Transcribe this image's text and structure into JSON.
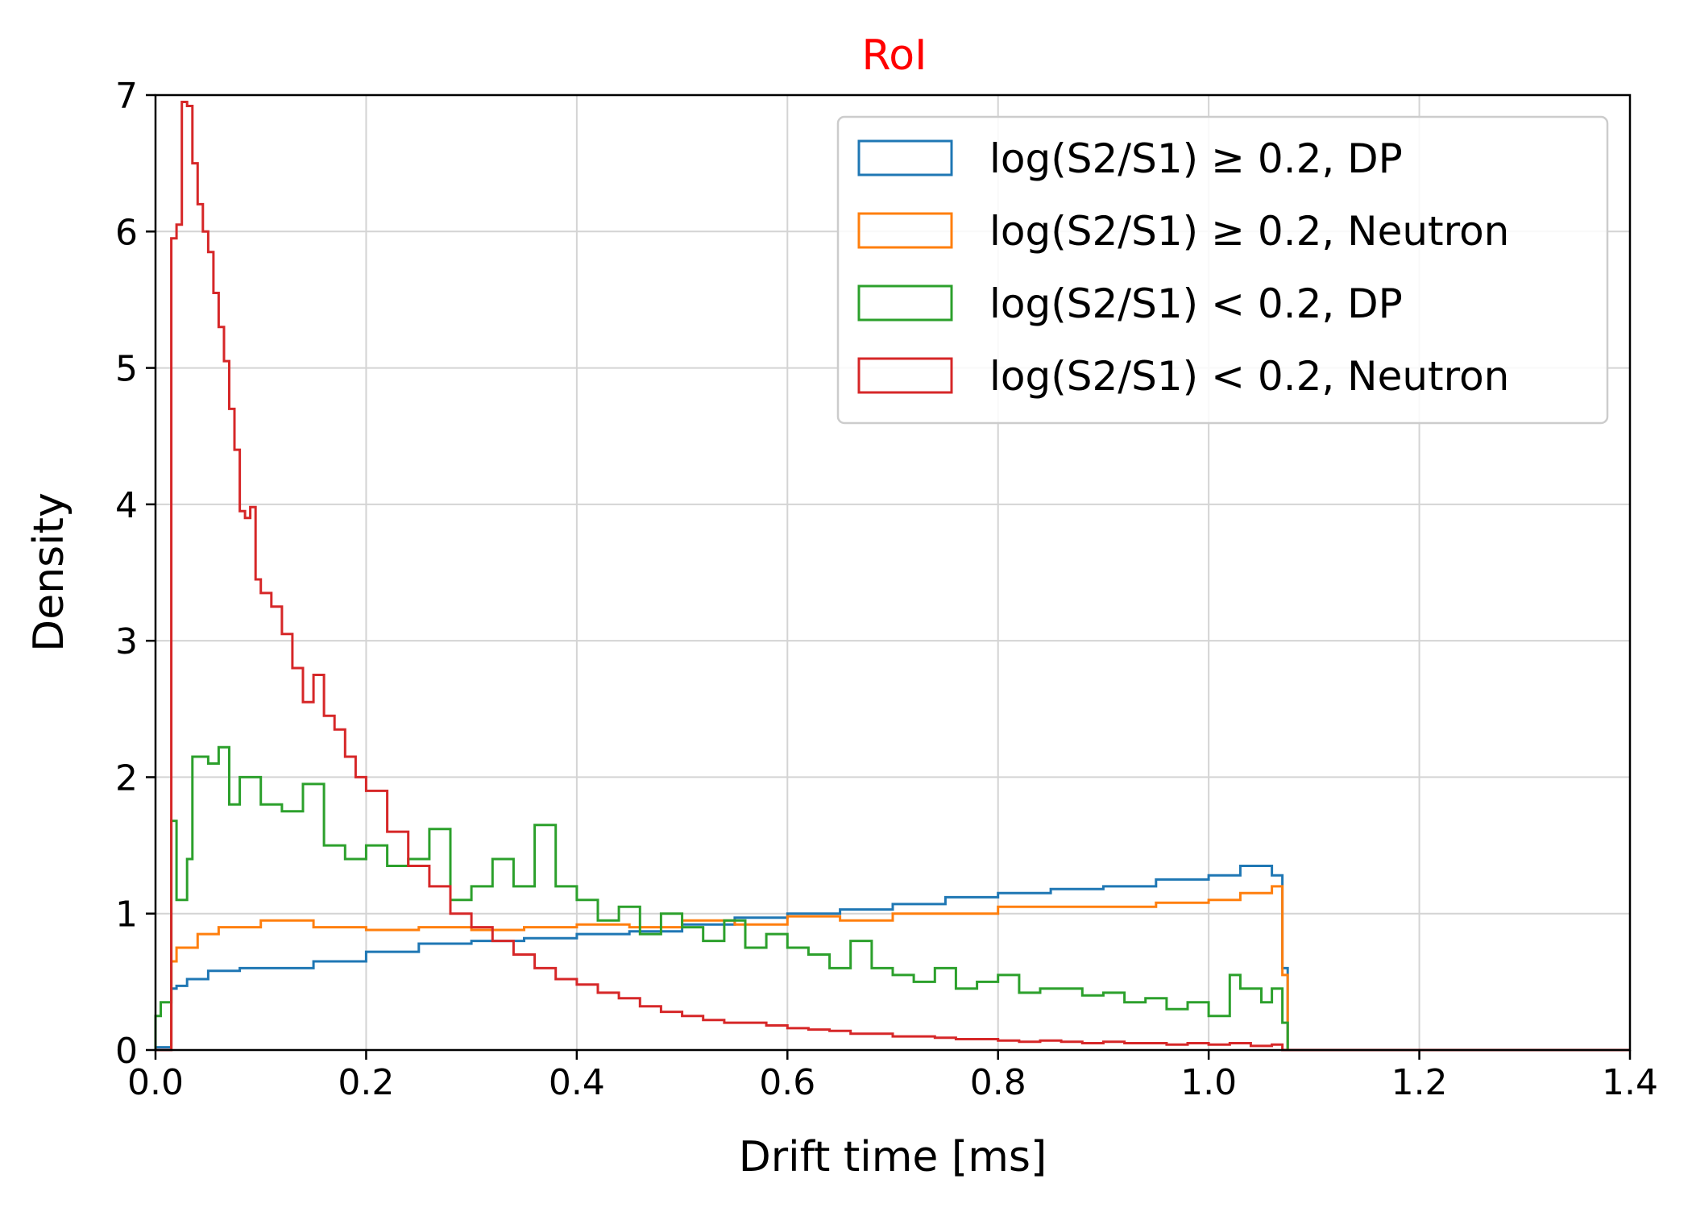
{
  "chart_data": {
    "type": "histogram-step",
    "title": "RoI",
    "title_color": "#ff0000",
    "xlabel": "Drift time [ms]",
    "ylabel": "Density",
    "xlim": [
      0.0,
      1.4
    ],
    "ylim": [
      0,
      7
    ],
    "x_ticks": [
      "0.0",
      "0.2",
      "0.4",
      "0.6",
      "0.8",
      "1.0",
      "1.2",
      "1.4"
    ],
    "y_ticks": [
      "0",
      "1",
      "2",
      "3",
      "4",
      "5",
      "6",
      "7"
    ],
    "grid": true,
    "legend_position": "top-right",
    "series": [
      {
        "name": "log(S2/S1) ≥ 0.2, DP",
        "color": "#1f77b4",
        "points": [
          [
            0.0,
            0.02
          ],
          [
            0.013,
            0.02
          ],
          [
            0.015,
            0.45
          ],
          [
            0.02,
            0.47
          ],
          [
            0.03,
            0.52
          ],
          [
            0.05,
            0.58
          ],
          [
            0.08,
            0.6
          ],
          [
            0.1,
            0.6
          ],
          [
            0.15,
            0.65
          ],
          [
            0.2,
            0.72
          ],
          [
            0.25,
            0.78
          ],
          [
            0.3,
            0.8
          ],
          [
            0.35,
            0.82
          ],
          [
            0.4,
            0.85
          ],
          [
            0.45,
            0.87
          ],
          [
            0.5,
            0.92
          ],
          [
            0.55,
            0.97
          ],
          [
            0.6,
            1.0
          ],
          [
            0.65,
            1.03
          ],
          [
            0.7,
            1.07
          ],
          [
            0.75,
            1.12
          ],
          [
            0.8,
            1.15
          ],
          [
            0.85,
            1.18
          ],
          [
            0.9,
            1.2
          ],
          [
            0.95,
            1.25
          ],
          [
            1.0,
            1.28
          ],
          [
            1.03,
            1.35
          ],
          [
            1.06,
            1.28
          ],
          [
            1.07,
            0.6
          ],
          [
            1.075,
            0.0
          ],
          [
            1.4,
            0.0
          ]
        ]
      },
      {
        "name": "log(S2/S1) ≥ 0.2, Neutron",
        "color": "#ff7f0e",
        "points": [
          [
            0.0,
            0.0
          ],
          [
            0.013,
            0.0
          ],
          [
            0.015,
            0.65
          ],
          [
            0.02,
            0.75
          ],
          [
            0.04,
            0.85
          ],
          [
            0.06,
            0.9
          ],
          [
            0.1,
            0.95
          ],
          [
            0.15,
            0.9
          ],
          [
            0.2,
            0.88
          ],
          [
            0.25,
            0.9
          ],
          [
            0.3,
            0.88
          ],
          [
            0.35,
            0.9
          ],
          [
            0.4,
            0.92
          ],
          [
            0.45,
            0.9
          ],
          [
            0.5,
            0.95
          ],
          [
            0.55,
            0.92
          ],
          [
            0.6,
            0.98
          ],
          [
            0.65,
            0.95
          ],
          [
            0.7,
            1.0
          ],
          [
            0.75,
            1.0
          ],
          [
            0.8,
            1.05
          ],
          [
            0.85,
            1.05
          ],
          [
            0.9,
            1.05
          ],
          [
            0.95,
            1.08
          ],
          [
            1.0,
            1.1
          ],
          [
            1.03,
            1.15
          ],
          [
            1.06,
            1.2
          ],
          [
            1.07,
            0.55
          ],
          [
            1.075,
            0.0
          ],
          [
            1.4,
            0.0
          ]
        ]
      },
      {
        "name": "log(S2/S1) < 0.2, DP",
        "color": "#2ca02c",
        "points": [
          [
            0.0,
            0.25
          ],
          [
            0.005,
            0.35
          ],
          [
            0.013,
            0.35
          ],
          [
            0.015,
            1.68
          ],
          [
            0.02,
            1.1
          ],
          [
            0.03,
            1.4
          ],
          [
            0.035,
            2.15
          ],
          [
            0.05,
            2.1
          ],
          [
            0.06,
            2.22
          ],
          [
            0.07,
            1.8
          ],
          [
            0.08,
            2.0
          ],
          [
            0.1,
            1.8
          ],
          [
            0.12,
            1.75
          ],
          [
            0.14,
            1.95
          ],
          [
            0.16,
            1.5
          ],
          [
            0.18,
            1.4
          ],
          [
            0.2,
            1.5
          ],
          [
            0.22,
            1.35
          ],
          [
            0.24,
            1.4
          ],
          [
            0.26,
            1.62
          ],
          [
            0.28,
            1.1
          ],
          [
            0.3,
            1.2
          ],
          [
            0.32,
            1.4
          ],
          [
            0.34,
            1.2
          ],
          [
            0.36,
            1.65
          ],
          [
            0.38,
            1.2
          ],
          [
            0.4,
            1.1
          ],
          [
            0.42,
            0.95
          ],
          [
            0.44,
            1.05
          ],
          [
            0.46,
            0.85
          ],
          [
            0.48,
            1.0
          ],
          [
            0.5,
            0.9
          ],
          [
            0.52,
            0.8
          ],
          [
            0.54,
            0.95
          ],
          [
            0.56,
            0.75
          ],
          [
            0.58,
            0.85
          ],
          [
            0.6,
            0.75
          ],
          [
            0.62,
            0.7
          ],
          [
            0.64,
            0.6
          ],
          [
            0.66,
            0.8
          ],
          [
            0.68,
            0.6
          ],
          [
            0.7,
            0.55
          ],
          [
            0.72,
            0.5
          ],
          [
            0.74,
            0.6
          ],
          [
            0.76,
            0.45
          ],
          [
            0.78,
            0.5
          ],
          [
            0.8,
            0.55
          ],
          [
            0.82,
            0.42
          ],
          [
            0.84,
            0.45
          ],
          [
            0.86,
            0.45
          ],
          [
            0.88,
            0.4
          ],
          [
            0.9,
            0.42
          ],
          [
            0.92,
            0.35
          ],
          [
            0.94,
            0.38
          ],
          [
            0.96,
            0.3
          ],
          [
            0.98,
            0.35
          ],
          [
            1.0,
            0.25
          ],
          [
            1.02,
            0.55
          ],
          [
            1.03,
            0.45
          ],
          [
            1.05,
            0.35
          ],
          [
            1.06,
            0.45
          ],
          [
            1.07,
            0.2
          ],
          [
            1.075,
            0.0
          ],
          [
            1.4,
            0.0
          ]
        ]
      },
      {
        "name": "log(S2/S1) < 0.2, Neutron",
        "color": "#d62728",
        "points": [
          [
            0.0,
            0.0
          ],
          [
            0.013,
            0.0
          ],
          [
            0.015,
            5.95
          ],
          [
            0.02,
            6.05
          ],
          [
            0.025,
            6.95
          ],
          [
            0.03,
            6.92
          ],
          [
            0.035,
            6.5
          ],
          [
            0.04,
            6.2
          ],
          [
            0.045,
            6.0
          ],
          [
            0.05,
            5.85
          ],
          [
            0.055,
            5.55
          ],
          [
            0.06,
            5.3
          ],
          [
            0.065,
            5.05
          ],
          [
            0.07,
            4.7
          ],
          [
            0.075,
            4.4
          ],
          [
            0.08,
            3.95
          ],
          [
            0.085,
            3.9
          ],
          [
            0.09,
            3.98
          ],
          [
            0.095,
            3.45
          ],
          [
            0.1,
            3.35
          ],
          [
            0.11,
            3.25
          ],
          [
            0.12,
            3.05
          ],
          [
            0.13,
            2.8
          ],
          [
            0.14,
            2.55
          ],
          [
            0.15,
            2.75
          ],
          [
            0.16,
            2.45
          ],
          [
            0.17,
            2.35
          ],
          [
            0.18,
            2.15
          ],
          [
            0.19,
            2.0
          ],
          [
            0.2,
            1.9
          ],
          [
            0.22,
            1.6
          ],
          [
            0.24,
            1.35
          ],
          [
            0.26,
            1.2
          ],
          [
            0.28,
            1.0
          ],
          [
            0.3,
            0.9
          ],
          [
            0.32,
            0.8
          ],
          [
            0.34,
            0.7
          ],
          [
            0.36,
            0.6
          ],
          [
            0.38,
            0.52
          ],
          [
            0.4,
            0.48
          ],
          [
            0.42,
            0.42
          ],
          [
            0.44,
            0.38
          ],
          [
            0.46,
            0.32
          ],
          [
            0.48,
            0.28
          ],
          [
            0.5,
            0.25
          ],
          [
            0.52,
            0.22
          ],
          [
            0.54,
            0.2
          ],
          [
            0.56,
            0.2
          ],
          [
            0.58,
            0.18
          ],
          [
            0.6,
            0.16
          ],
          [
            0.62,
            0.15
          ],
          [
            0.64,
            0.14
          ],
          [
            0.66,
            0.12
          ],
          [
            0.68,
            0.12
          ],
          [
            0.7,
            0.1
          ],
          [
            0.72,
            0.1
          ],
          [
            0.74,
            0.09
          ],
          [
            0.76,
            0.08
          ],
          [
            0.78,
            0.08
          ],
          [
            0.8,
            0.07
          ],
          [
            0.82,
            0.06
          ],
          [
            0.84,
            0.07
          ],
          [
            0.86,
            0.06
          ],
          [
            0.88,
            0.05
          ],
          [
            0.9,
            0.06
          ],
          [
            0.92,
            0.05
          ],
          [
            0.94,
            0.05
          ],
          [
            0.96,
            0.04
          ],
          [
            0.98,
            0.05
          ],
          [
            1.0,
            0.04
          ],
          [
            1.02,
            0.05
          ],
          [
            1.04,
            0.03
          ],
          [
            1.06,
            0.04
          ],
          [
            1.07,
            0.0
          ],
          [
            1.4,
            0.0
          ]
        ]
      }
    ]
  }
}
